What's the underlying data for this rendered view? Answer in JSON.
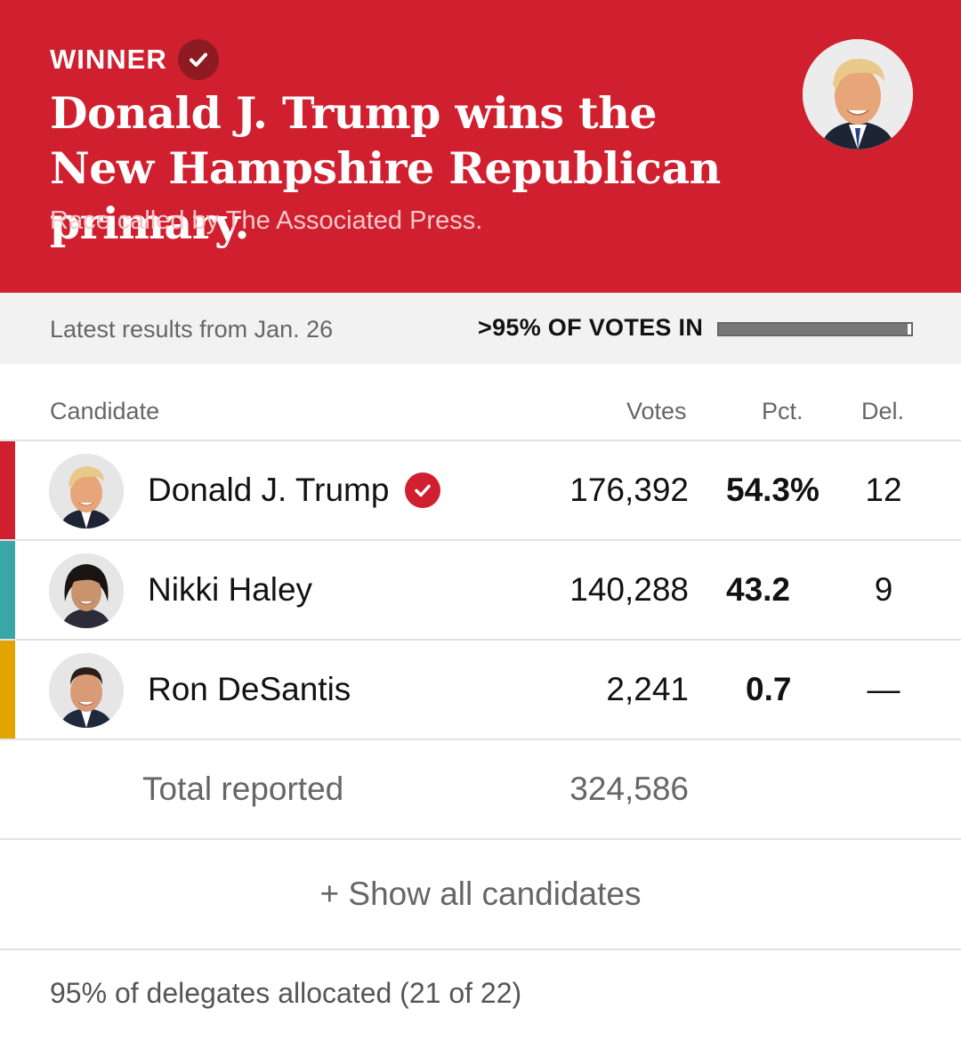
{
  "banner": {
    "winner_label": "WINNER",
    "headline": "Donald J. Trump wins the New Hampshire Republican primary.",
    "called_by": "Race called by The Associated Press.",
    "background_color": "#d0202f"
  },
  "status": {
    "latest": "Latest results from Jan. 26",
    "votes_in": ">95% OF VOTES IN",
    "progress_fraction": 0.98
  },
  "columns": {
    "candidate": "Candidate",
    "votes": "Votes",
    "pct": "Pct.",
    "del": "Del."
  },
  "candidates": [
    {
      "name": "Donald J. Trump",
      "votes": "176,392",
      "pct": "54.3%",
      "del": "12",
      "winner": true,
      "color": "#d0202f"
    },
    {
      "name": "Nikki Haley",
      "votes": "140,288",
      "pct": "43.2",
      "del": "9",
      "winner": false,
      "color": "#3aa6a8"
    },
    {
      "name": "Ron DeSantis",
      "votes": "2,241",
      "pct": "0.7",
      "del": "—",
      "winner": false,
      "color": "#e2a500"
    }
  ],
  "total": {
    "label": "Total reported",
    "votes": "324,586"
  },
  "show_all": "+ Show all candidates",
  "delegates_note": "95% of delegates allocated (21 of 22)"
}
